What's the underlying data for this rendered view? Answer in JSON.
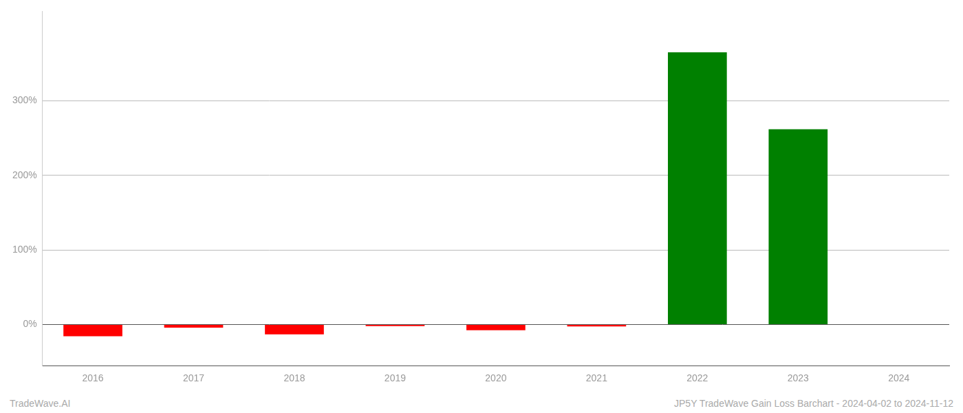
{
  "chart_data": {
    "type": "bar",
    "categories": [
      "2016",
      "2017",
      "2018",
      "2019",
      "2020",
      "2021",
      "2022",
      "2023",
      "2024"
    ],
    "values": [
      -0.155,
      -0.04,
      -0.13,
      -0.02,
      -0.075,
      -0.025,
      3.65,
      2.62,
      0.0
    ],
    "colors": [
      "#ff0000",
      "#ff0000",
      "#ff0000",
      "#ff0000",
      "#ff0000",
      "#ff0000",
      "#008000",
      "#008000",
      "#ffffff"
    ],
    "ylim": [
      -0.55,
      4.2
    ],
    "yticks": [
      {
        "value": 0.0,
        "label": "0%"
      },
      {
        "value": 1.0,
        "label": "100%"
      },
      {
        "value": 2.0,
        "label": "200%"
      },
      {
        "value": 3.0,
        "label": "300%"
      }
    ],
    "grid": true,
    "annotations": [
      "TradeWave.AI",
      "JP5Y TradeWave Gain Loss Barchart - 2024-04-02 to 2024-11-12"
    ]
  }
}
